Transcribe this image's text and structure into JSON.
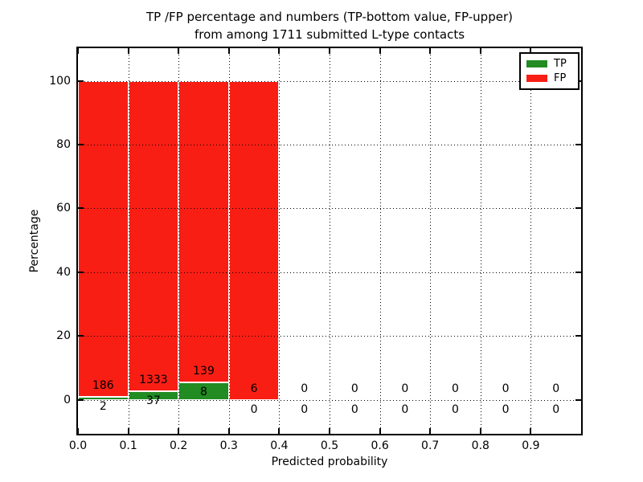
{
  "title": {
    "line1": "TP /FP percentage and numbers (TP-bottom value, FP-upper)",
    "line2": "from among 1711 submitted L-type contacts"
  },
  "chart_data": {
    "type": "bar",
    "stacked": true,
    "title": "TP /FP percentage and numbers (TP-bottom value, FP-upper) from among 1711 submitted L-type contacts",
    "xlabel": "Predicted probability",
    "ylabel": "Percentage",
    "xlim": [
      0.0,
      1.0
    ],
    "ylim": [
      -10.6,
      110.2
    ],
    "bin_width": 0.1,
    "categories": [
      "0.0-0.1",
      "0.1-0.2",
      "0.2-0.3",
      "0.3-0.4",
      "0.4-0.5",
      "0.5-0.6",
      "0.6-0.7",
      "0.7-0.8",
      "0.8-0.9",
      "0.9-1.0"
    ],
    "xticks": [
      "0.0",
      "0.1",
      "0.2",
      "0.3",
      "0.4",
      "0.5",
      "0.6",
      "0.7",
      "0.8",
      "0.9"
    ],
    "yticks": [
      0,
      20,
      40,
      60,
      80,
      100
    ],
    "grid": "dotted",
    "legend_position": "upper right",
    "series": [
      {
        "name": "TP",
        "color": "#228b22",
        "counts": [
          2,
          37,
          8,
          0,
          0,
          0,
          0,
          0,
          0,
          0
        ],
        "percent": [
          1.06,
          2.7,
          5.44,
          0,
          0,
          0,
          0,
          0,
          0,
          0
        ]
      },
      {
        "name": "FP",
        "color": "#f91e14",
        "counts": [
          186,
          1333,
          139,
          6,
          0,
          0,
          0,
          0,
          0,
          0
        ],
        "percent": [
          98.94,
          97.3,
          94.56,
          100,
          0,
          0,
          0,
          0,
          0,
          0
        ]
      }
    ],
    "edge_color": "#ffffff"
  }
}
